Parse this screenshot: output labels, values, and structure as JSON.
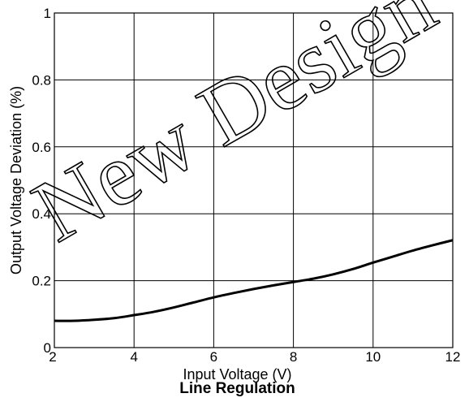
{
  "chart_data": {
    "type": "line",
    "title": "Line Regulation",
    "xlabel": "Input Voltage (V)",
    "ylabel": "Output Voltage Deviation (%)",
    "xlim": [
      2,
      12
    ],
    "ylim": [
      0,
      1
    ],
    "xticks": [
      "2",
      "4",
      "6",
      "8",
      "10",
      "12"
    ],
    "yticks": [
      "0",
      "0.2",
      "0.4",
      "0.6",
      "0.8",
      "1"
    ],
    "grid": true,
    "series": [
      {
        "x": [
          2,
          2.5,
          3,
          3.5,
          4,
          4.5,
          5,
          5.5,
          6,
          6.5,
          7,
          7.5,
          8,
          8.5,
          9,
          9.5,
          10,
          10.5,
          11,
          11.5,
          12
        ],
        "y": [
          0.08,
          0.08,
          0.083,
          0.088,
          0.097,
          0.107,
          0.12,
          0.135,
          0.15,
          0.163,
          0.175,
          0.186,
          0.196,
          0.206,
          0.219,
          0.235,
          0.254,
          0.272,
          0.29,
          0.306,
          0.321
        ],
        "color": "#000000"
      }
    ]
  },
  "watermark": "New Design"
}
